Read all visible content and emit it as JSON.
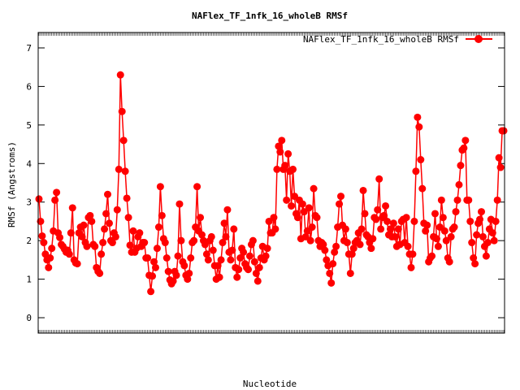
{
  "chart_data": {
    "type": "line",
    "title": "NAFlex_TF_1nfk_16_wholeB RMSf",
    "xlabel": "Nucleotide",
    "ylabel": "RMSf (Angstroms)",
    "ylim": [
      -0.4,
      7.4
    ],
    "yticks": [
      0,
      1,
      2,
      3,
      4,
      5,
      6,
      7
    ],
    "grid": false,
    "legend_position": "top-right",
    "series": [
      {
        "name": "NAFlex_TF_1nfk_16_wholeB RMSf",
        "color": "#ff0000",
        "values": [
          3.08,
          2.5,
          2.12,
          1.95,
          1.65,
          1.5,
          1.3,
          1.55,
          1.8,
          2.25,
          3.05,
          3.25,
          2.2,
          2.08,
          1.9,
          1.85,
          1.78,
          1.7,
          1.75,
          1.65,
          2.2,
          2.85,
          1.5,
          1.42,
          1.4,
          2.2,
          2.35,
          2.1,
          2.4,
          1.95,
          1.85,
          2.6,
          2.65,
          2.5,
          1.9,
          1.85,
          1.3,
          1.2,
          1.15,
          1.65,
          1.95,
          2.3,
          2.7,
          3.2,
          2.45,
          2.0,
          1.95,
          2.2,
          2.1,
          2.8,
          3.85,
          6.3,
          5.35,
          4.6,
          3.8,
          3.1,
          2.6,
          1.88,
          1.7,
          2.25,
          1.7,
          1.8,
          2.1,
          2.2,
          1.85,
          1.95,
          1.95,
          1.55,
          1.55,
          1.1,
          0.68,
          1.08,
          1.45,
          1.3,
          1.8,
          2.35,
          3.4,
          2.65,
          2.05,
          1.95,
          1.55,
          1.2,
          0.98,
          0.88,
          0.95,
          1.2,
          1.1,
          1.6,
          2.95,
          2.0,
          1.45,
          1.35,
          1.1,
          1.0,
          1.15,
          1.55,
          1.95,
          2.0,
          2.35,
          3.4,
          2.25,
          2.6,
          2.15,
          2.0,
          1.9,
          1.65,
          1.5,
          2.0,
          2.1,
          1.75,
          1.35,
          1.0,
          1.35,
          1.05,
          1.5,
          1.95,
          2.45,
          2.1,
          2.8,
          1.7,
          1.5,
          1.75,
          2.3,
          1.3,
          1.05,
          1.25,
          1.55,
          1.8,
          1.7,
          1.4,
          1.3,
          1.25,
          1.6,
          1.9,
          2.0,
          1.45,
          1.15,
          0.95,
          1.3,
          1.55,
          1.85,
          1.5,
          1.6,
          1.8,
          2.5,
          2.2,
          2.2,
          2.6,
          2.3,
          3.85,
          4.45,
          4.3,
          4.6,
          3.85,
          3.95,
          3.05,
          4.25,
          3.8,
          2.9,
          3.85,
          3.15,
          2.7,
          2.6,
          3.05,
          2.05,
          2.95,
          2.75,
          2.1,
          2.25,
          2.85,
          2.0,
          2.35,
          3.35,
          2.65,
          2.6,
          2.0,
          1.85,
          1.95,
          1.9,
          1.75,
          1.5,
          1.35,
          1.15,
          0.9,
          1.4,
          1.7,
          1.85,
          2.35,
          2.95,
          3.15,
          2.4,
          2.0,
          2.3,
          1.95,
          1.65,
          1.15,
          1.65,
          1.8,
          1.95,
          2.0,
          2.2,
          1.9,
          2.3,
          3.3,
          2.7,
          2.15,
          2.1,
          1.95,
          1.8,
          2.05,
          2.6,
          2.55,
          2.8,
          3.6,
          2.3,
          2.6,
          2.65,
          2.9,
          2.5,
          2.15,
          2.3,
          2.1,
          2.45,
          2.1,
          1.85,
          2.3,
          1.9,
          2.5,
          2.55,
          1.95,
          2.6,
          1.85,
          1.65,
          1.3,
          1.65,
          2.5,
          3.8,
          5.2,
          4.95,
          4.1,
          3.35,
          2.45,
          2.25,
          2.4,
          1.45,
          1.55,
          1.6,
          2.1,
          2.7,
          2.05,
          1.85,
          2.35,
          3.05,
          2.6,
          2.25,
          2.0,
          1.55,
          1.45,
          2.1,
          2.3,
          2.35,
          2.75,
          3.05,
          3.45,
          3.95,
          4.35,
          4.4,
          4.6,
          3.05,
          3.05,
          2.5,
          1.95,
          1.55,
          1.4,
          2.15,
          2.45,
          2.55,
          2.75,
          2.1,
          1.85,
          1.6,
          1.95,
          2.3,
          2.55,
          2.2,
          2.0,
          2.5,
          3.05,
          4.15,
          3.9,
          4.85,
          4.85
        ]
      }
    ]
  }
}
